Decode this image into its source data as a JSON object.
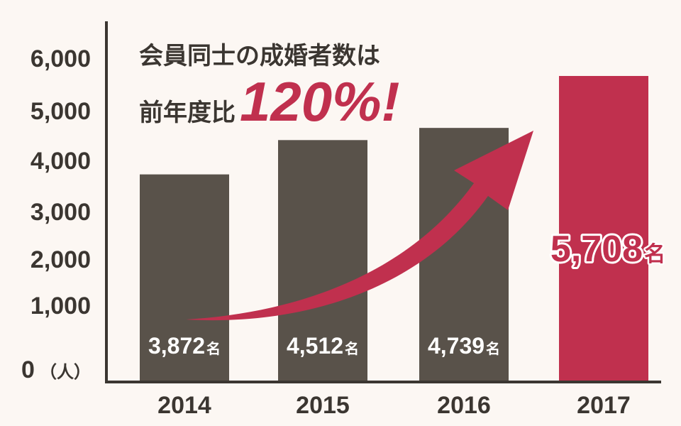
{
  "header": {
    "line1": "会員同士の成婚者数は",
    "line2_prefix": "前年度比",
    "line2_highlight": "120%!"
  },
  "chart_data": {
    "type": "bar",
    "categories": [
      "2014",
      "2015",
      "2016",
      "2017"
    ],
    "values": [
      3872,
      4512,
      4739,
      5708
    ],
    "value_labels": [
      "3,872",
      "4,512",
      "4,739",
      "5,708"
    ],
    "value_suffix": "名",
    "yticks": [
      "0",
      "1,000",
      "2,000",
      "3,000",
      "4,000",
      "5,000",
      "6,000"
    ],
    "ytick_values": [
      0,
      1000,
      2000,
      3000,
      4000,
      5000,
      6000
    ],
    "yunit": "（人）",
    "ylim": [
      0,
      6000
    ],
    "highlight_index": 3,
    "colors": {
      "bar": "#59524a",
      "highlight": "#c0304e",
      "axis": "#3b3631"
    }
  }
}
